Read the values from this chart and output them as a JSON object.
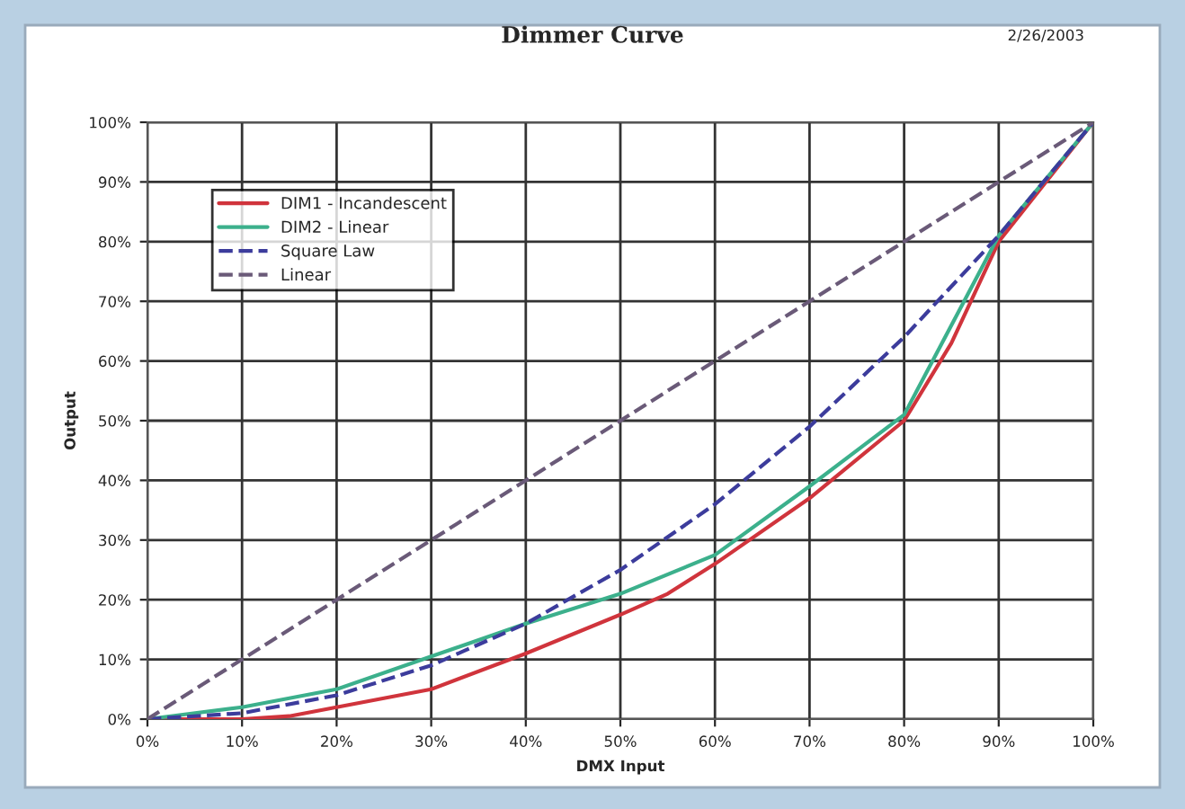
{
  "chart_data": {
    "type": "line",
    "title": "Dimmer Curve",
    "xlabel": "DMX Input",
    "ylabel": "Output",
    "annotations": [
      "2/26/2003"
    ],
    "xlim": [
      0,
      100
    ],
    "ylim": [
      0,
      100
    ],
    "xticks": [
      {
        "value": 0,
        "label": "0%"
      },
      {
        "value": 10,
        "label": "10%"
      },
      {
        "value": 20,
        "label": "20%"
      },
      {
        "value": 30,
        "label": "30%"
      },
      {
        "value": 40,
        "label": "40%"
      },
      {
        "value": 50,
        "label": "50%"
      },
      {
        "value": 60,
        "label": "60%"
      },
      {
        "value": 70,
        "label": "70%"
      },
      {
        "value": 80,
        "label": "80%"
      },
      {
        "value": 90,
        "label": "90%"
      },
      {
        "value": 100,
        "label": "100%"
      }
    ],
    "yticks": [
      {
        "value": 0,
        "label": "0%"
      },
      {
        "value": 10,
        "label": "10%"
      },
      {
        "value": 20,
        "label": "20%"
      },
      {
        "value": 30,
        "label": "30%"
      },
      {
        "value": 40,
        "label": "40%"
      },
      {
        "value": 50,
        "label": "50%"
      },
      {
        "value": 60,
        "label": "60%"
      },
      {
        "value": 70,
        "label": "70%"
      },
      {
        "value": 80,
        "label": "80%"
      },
      {
        "value": 90,
        "label": "90%"
      },
      {
        "value": 100,
        "label": "100%"
      }
    ],
    "grid": true,
    "legend": "top left",
    "marker": "none",
    "series": [
      {
        "name": "DIM1 - Incandescent",
        "color": "#d0343c",
        "line_style": "solid",
        "x": [
          0,
          10,
          15,
          20,
          30,
          40,
          50,
          55,
          60,
          70,
          80,
          85,
          90,
          100
        ],
        "values": [
          0,
          0,
          0.5,
          2,
          5,
          11,
          17.5,
          21,
          26,
          37,
          50,
          63,
          80,
          100
        ]
      },
      {
        "name": "DIM2 - Linear",
        "color": "#3cb08c",
        "line_style": "solid",
        "x": [
          0,
          10,
          20,
          30,
          40,
          50,
          60,
          70,
          80,
          90,
          100
        ],
        "values": [
          0,
          2,
          5,
          10.5,
          16,
          21,
          27.5,
          39,
          51,
          81,
          100
        ]
      },
      {
        "name": "Square Law",
        "color": "#3c3c9c",
        "line_style": "dashed",
        "x": [
          0,
          10,
          20,
          30,
          40,
          50,
          60,
          70,
          80,
          90,
          100
        ],
        "values": [
          0,
          1,
          4,
          9,
          16,
          25,
          36,
          49,
          64,
          81,
          100
        ]
      },
      {
        "name": "Linear",
        "color": "#6a5a78",
        "line_style": "dashed",
        "x": [
          0,
          10,
          20,
          30,
          40,
          50,
          60,
          70,
          80,
          90,
          100
        ],
        "values": [
          0,
          10,
          20,
          30,
          40,
          50,
          60,
          70,
          80,
          90,
          100
        ]
      }
    ]
  }
}
